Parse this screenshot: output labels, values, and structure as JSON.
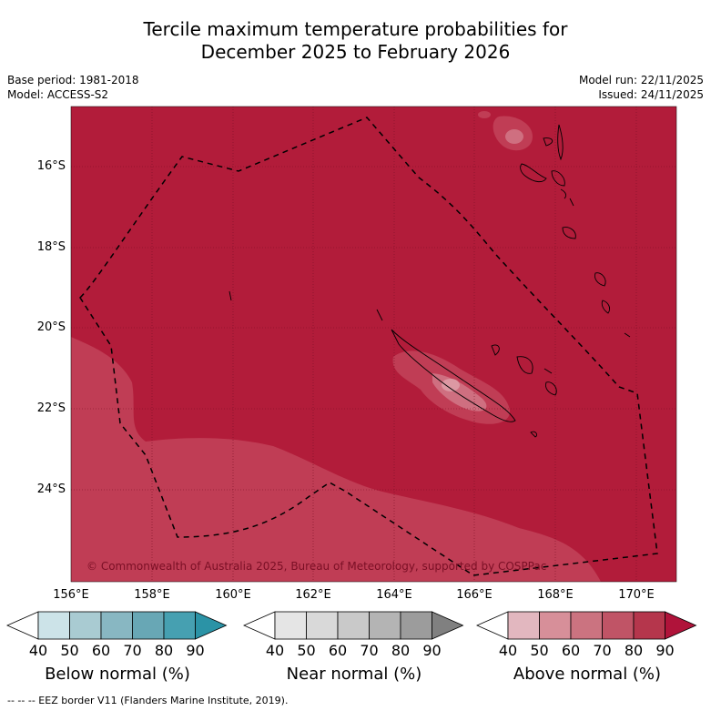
{
  "title": {
    "line1": "Tercile maximum temperature probabilities for",
    "line2": "December 2025 to February 2026"
  },
  "meta_left": {
    "base_period": "Base period: 1981-2018",
    "model": "Model: ACCESS-S2"
  },
  "meta_right": {
    "model_run": "Model run: 22/11/2025",
    "issued": "Issued: 24/11/2025"
  },
  "map": {
    "lat_labels": [
      "16°S",
      "18°S",
      "20°S",
      "22°S",
      "24°S"
    ],
    "lon_labels": [
      "156°E",
      "158°E",
      "160°E",
      "162°E",
      "164°E",
      "166°E",
      "168°E",
      "170°E"
    ],
    "copyright": "© Commonwealth of Australia 2025, Bureau of Meteorology, supported by COSPPac",
    "colors": {
      "above_80_90": "#b21c3a",
      "above_70_80": "#c03d55",
      "above_60_70": "#cf6f80",
      "above_50_60": "#dc98a3"
    }
  },
  "colorbars": [
    {
      "label": "Below normal (%)",
      "ticks": [
        "40",
        "50",
        "60",
        "70",
        "80",
        "90"
      ],
      "colors": [
        "#ffffff",
        "#cce3e8",
        "#a9cbd2",
        "#88b7c2",
        "#68a7b5",
        "#46a0b1",
        "#2b93a6"
      ]
    },
    {
      "label": "Near normal (%)",
      "ticks": [
        "40",
        "50",
        "60",
        "70",
        "80",
        "90"
      ],
      "colors": [
        "#ffffff",
        "#e5e5e5",
        "#d9d9d9",
        "#c9c9c9",
        "#b4b4b4",
        "#9c9c9c",
        "#808080"
      ]
    },
    {
      "label": "Above normal (%)",
      "ticks": [
        "40",
        "50",
        "60",
        "70",
        "80",
        "90"
      ],
      "colors": [
        "#ffffff",
        "#e2b7bf",
        "#d78f99",
        "#cb7380",
        "#c05466",
        "#b5364c",
        "#b0133a"
      ]
    }
  ],
  "footnote": "--  --  -- EEZ border V11 (Flanders Marine Institute, 2019)."
}
